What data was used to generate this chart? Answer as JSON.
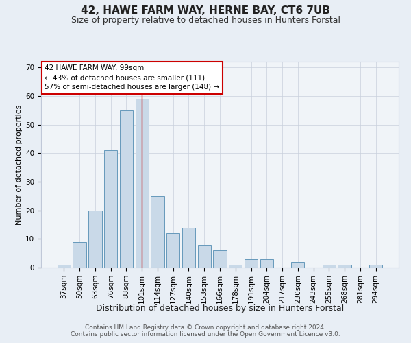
{
  "title1": "42, HAWE FARM WAY, HERNE BAY, CT6 7UB",
  "title2": "Size of property relative to detached houses in Hunters Forstal",
  "xlabel": "Distribution of detached houses by size in Hunters Forstal",
  "ylabel": "Number of detached properties",
  "categories": [
    "37sqm",
    "50sqm",
    "63sqm",
    "76sqm",
    "88sqm",
    "101sqm",
    "114sqm",
    "127sqm",
    "140sqm",
    "153sqm",
    "166sqm",
    "178sqm",
    "191sqm",
    "204sqm",
    "217sqm",
    "230sqm",
    "243sqm",
    "255sqm",
    "268sqm",
    "281sqm",
    "294sqm"
  ],
  "values": [
    1,
    9,
    20,
    41,
    55,
    59,
    25,
    12,
    14,
    8,
    6,
    1,
    3,
    3,
    0,
    2,
    0,
    1,
    1,
    0,
    1
  ],
  "bar_color": "#c9d9e8",
  "bar_edgecolor": "#6699bb",
  "vline_x": 5,
  "vline_color": "#cc0000",
  "annotation_line1": "42 HAWE FARM WAY: 99sqm",
  "annotation_line2": "← 43% of detached houses are smaller (111)",
  "annotation_line3": "57% of semi-detached houses are larger (148) →",
  "annotation_box_color": "#ffffff",
  "annotation_box_edgecolor": "#cc0000",
  "ylim": [
    0,
    72
  ],
  "yticks": [
    0,
    10,
    20,
    30,
    40,
    50,
    60,
    70
  ],
  "bg_color": "#e8eef5",
  "plot_bg_color": "#f0f4f8",
  "footer1": "Contains HM Land Registry data © Crown copyright and database right 2024.",
  "footer2": "Contains public sector information licensed under the Open Government Licence v3.0.",
  "title1_fontsize": 11,
  "title2_fontsize": 9,
  "xlabel_fontsize": 9,
  "ylabel_fontsize": 8,
  "tick_fontsize": 7.5,
  "footer_fontsize": 6.5,
  "annot_fontsize": 7.5
}
